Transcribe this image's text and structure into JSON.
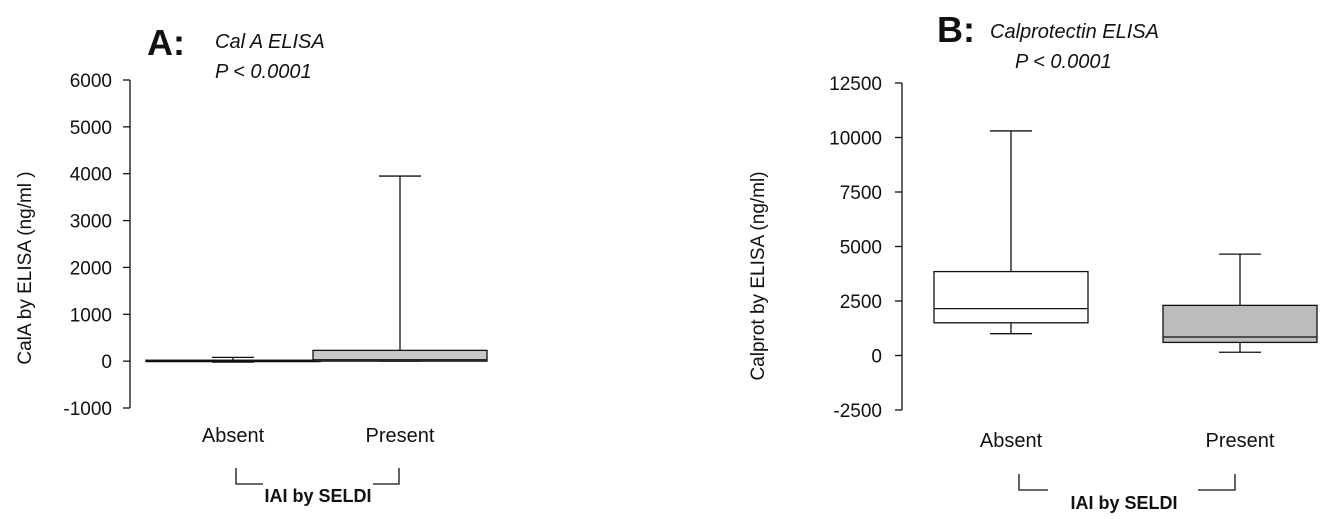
{
  "chart_data": [
    {
      "type": "box",
      "panel": "A:",
      "title": "Cal A ELISA",
      "subtitle": "P < 0.0001",
      "ylabel": "CalA by ELISA (ng/ml )",
      "xlabel": "IAI by SELDI",
      "ylim": [
        -1000,
        6000
      ],
      "yticks": [
        -1000,
        0,
        1000,
        2000,
        3000,
        4000,
        5000,
        6000
      ],
      "categories": [
        "Absent",
        "Present"
      ],
      "boxes": [
        {
          "category": "Absent",
          "min": -20,
          "q1": -10,
          "median": 0,
          "q3": 20,
          "max": 80,
          "fill": "#ffffff"
        },
        {
          "category": "Present",
          "min": 0,
          "q1": 0,
          "median": 30,
          "q3": 230,
          "max": 3950,
          "fill": "#c8c8c8"
        }
      ]
    },
    {
      "type": "box",
      "panel": "B:",
      "title": "Calprotectin ELISA",
      "subtitle": "P < 0.0001",
      "ylabel": "Calprot by ELISA (ng/ml)",
      "xlabel": "IAI by SELDI",
      "ylim": [
        -2500,
        12500
      ],
      "yticks": [
        -2500,
        0,
        2500,
        5000,
        7500,
        10000,
        12500
      ],
      "categories": [
        "Absent",
        "Present"
      ],
      "boxes": [
        {
          "category": "Absent",
          "min": 1000,
          "q1": 1500,
          "median": 2150,
          "q3": 3850,
          "max": 10300,
          "fill": "#ffffff"
        },
        {
          "category": "Present",
          "min": 150,
          "q1": 600,
          "median": 850,
          "q3": 2300,
          "max": 4650,
          "fill": "#bdbdbd"
        }
      ]
    }
  ]
}
